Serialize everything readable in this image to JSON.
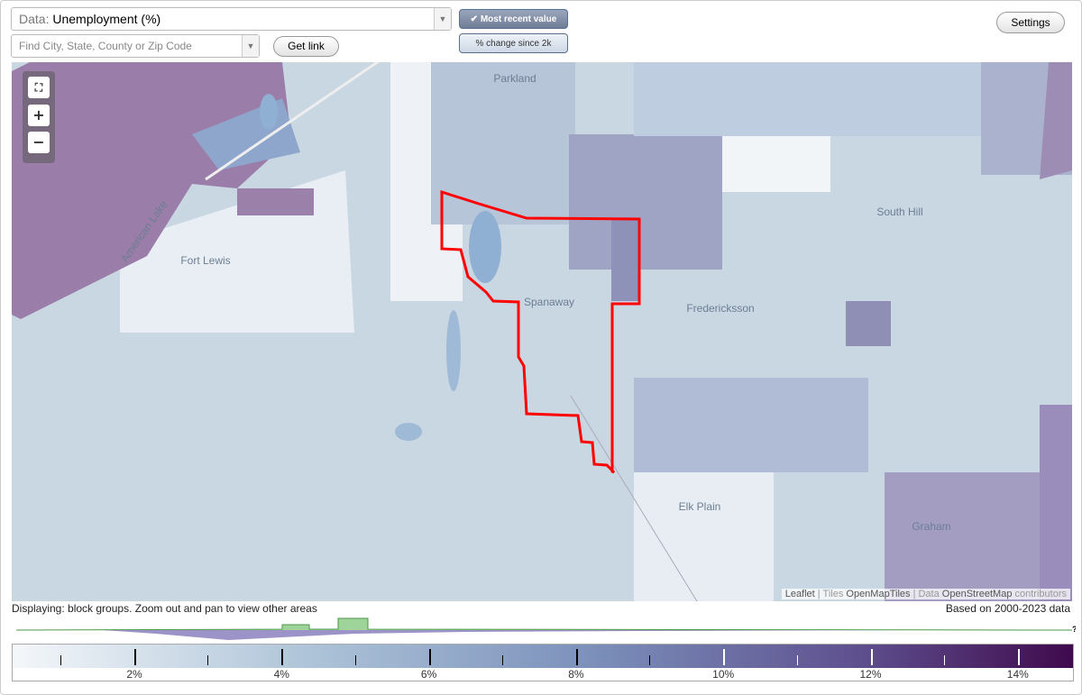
{
  "toolbar": {
    "data_label": "Data:",
    "data_value": "Unemployment (%)",
    "search_placeholder": "Find City, State, County or Zip Code",
    "get_link": "Get link",
    "toggle": [
      "Most recent value",
      "% change since 2k"
    ],
    "settings": "Settings"
  },
  "map": {
    "labels": [
      "Parkland",
      "Fort Lewis",
      "American Lake",
      "Spanaway",
      "South Hill",
      "Fredericksson",
      "Elk Plain",
      "Graham"
    ],
    "attribution": [
      "Leaflet",
      "| Tiles",
      "OpenMapTiles",
      "| Data",
      "OpenStreetMap",
      "contributors"
    ]
  },
  "footer": {
    "status": "Displaying: block groups. Zoom out and pan to view other areas",
    "data_range": "Based on 2000-2023 data",
    "histogram_help": "?"
  },
  "legend": {
    "ticks": [
      "2%",
      "4%",
      "6%",
      "8%",
      "10%",
      "12%",
      "14%"
    ]
  }
}
